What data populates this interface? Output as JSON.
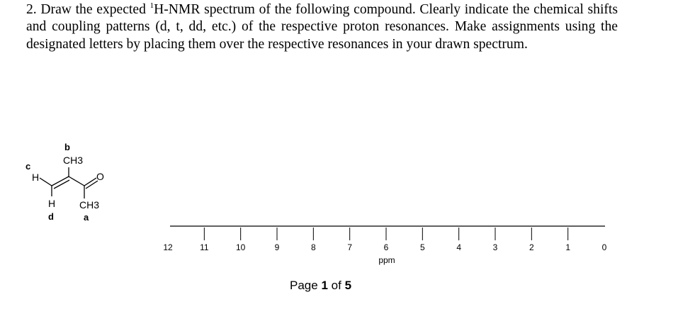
{
  "question": {
    "number": "2.",
    "text_before_sup": "Draw the expected",
    "superscript": "1",
    "text_after_sup": "H-NMR spectrum of the following compound. Clearly indicate the chemical shifts and coupling patterns (d, t, dd, etc.) of the respective proton resonances. Make assignments using the designated letters by placing them over the respective resonances in your drawn spectrum."
  },
  "structure": {
    "label_b": "b",
    "label_c": "c",
    "label_d": "d",
    "label_a": "a",
    "ch3_top": "CH3",
    "ch3_bottom": "CH3",
    "atom_h_left": "H",
    "atom_h_bottom": "H",
    "atom_o": "O"
  },
  "axis": {
    "ticks": [
      12,
      11,
      10,
      9,
      8,
      7,
      6,
      5,
      4,
      3,
      2,
      1,
      0
    ],
    "unit": "ppm"
  },
  "footer": {
    "page_prefix": "Page",
    "page_current": "1",
    "page_of": "of",
    "page_total": "5"
  }
}
